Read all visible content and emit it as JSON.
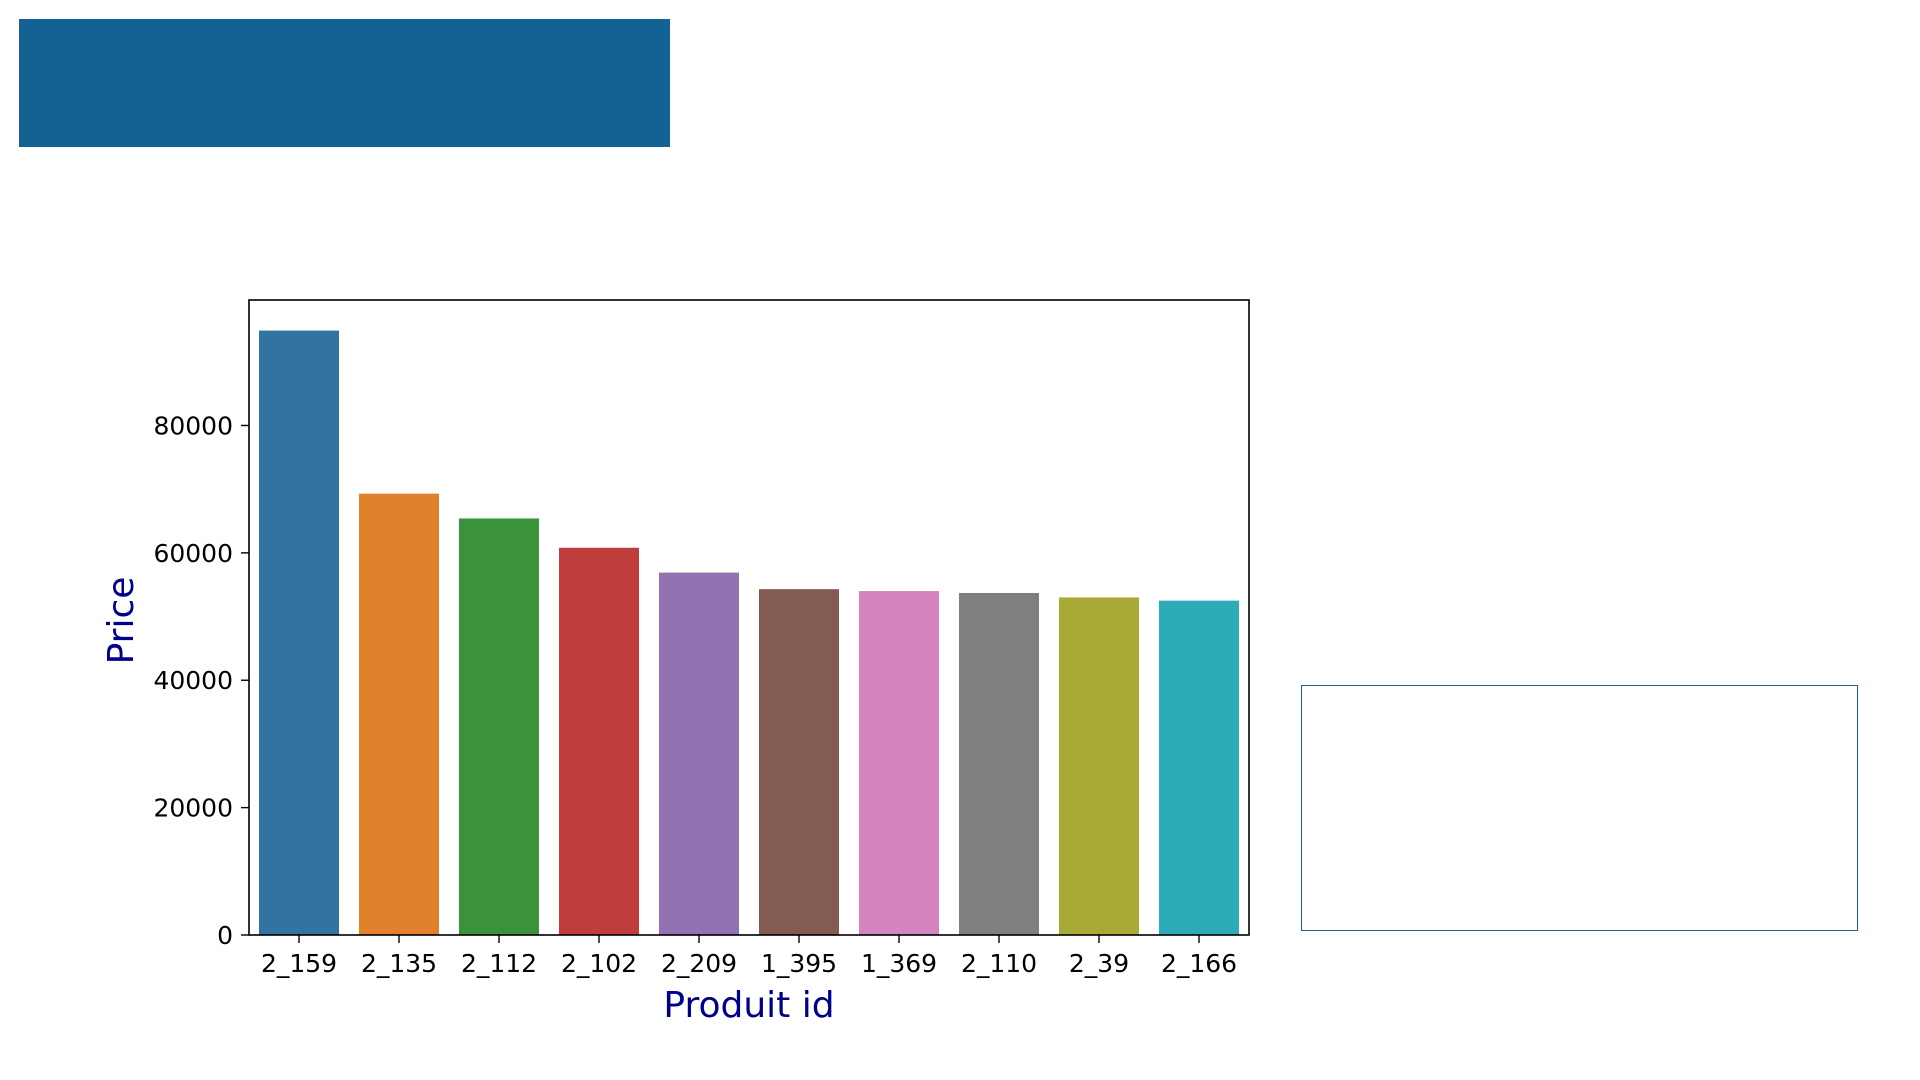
{
  "colors": {
    "banner": "#146294",
    "box_border": "#146294",
    "axis_label": "#00008b"
  },
  "chart_data": {
    "type": "bar",
    "categories": [
      "2_159",
      "2_135",
      "2_112",
      "2_102",
      "2_209",
      "1_395",
      "1_369",
      "2_110",
      "2_39",
      "2_166"
    ],
    "values": [
      94900,
      69300,
      65400,
      60800,
      56900,
      54300,
      54000,
      53700,
      53000,
      52500
    ],
    "colors": [
      "#3274a1",
      "#e1812c",
      "#3a923a",
      "#c03d3e",
      "#9372b2",
      "#845b53",
      "#d684bd",
      "#7f7f7f",
      "#a9aa35",
      "#2eabb8"
    ],
    "xlabel": "Produit id",
    "ylabel": "Price",
    "yticks": [
      0,
      20000,
      40000,
      60000,
      80000
    ],
    "ylim": [
      0,
      99700
    ],
    "grid": false,
    "legend": "none"
  }
}
